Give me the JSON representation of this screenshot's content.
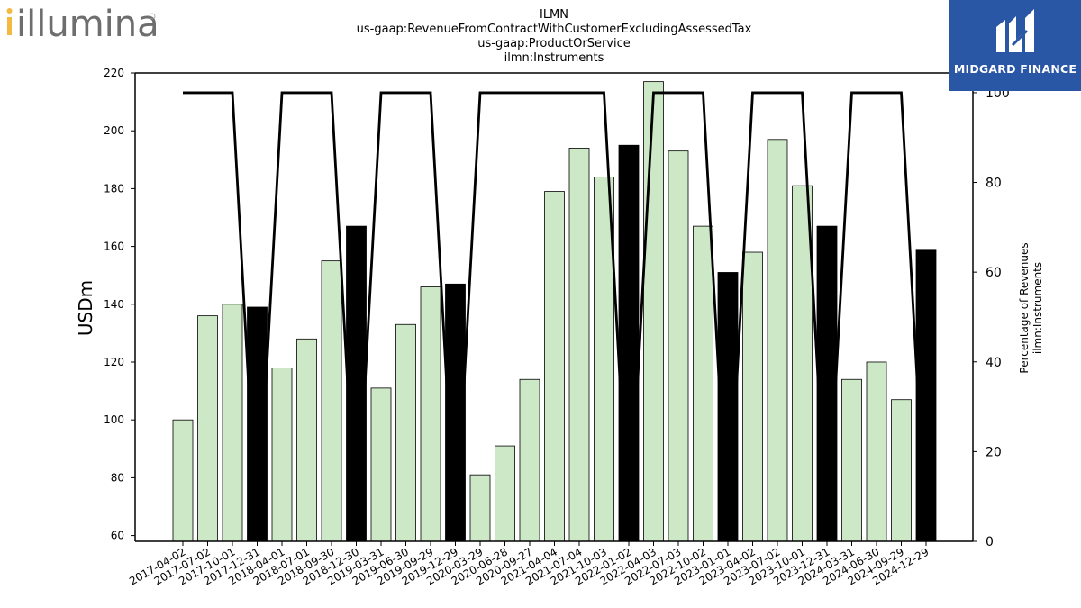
{
  "logos": {
    "left_text": "illumina",
    "right_text": "MIDGARD FINANCE"
  },
  "chart_data": {
    "type": "bar",
    "title_lines": [
      "ILMN",
      "us-gaap:RevenueFromContractWithCustomerExcludingAssessedTax",
      "us-gaap:ProductOrService",
      "ilmn:Instruments"
    ],
    "ylabel": "USDm",
    "y2label_lines": [
      "Percentage of Revenues",
      "ilmn:Instruments"
    ],
    "ylim": [
      58,
      220
    ],
    "y_ticks": [
      60,
      80,
      100,
      120,
      140,
      160,
      180,
      200,
      220
    ],
    "y2lim": [
      0,
      104.4
    ],
    "y2_ticks": [
      0,
      20,
      40,
      60,
      80,
      100
    ],
    "categories": [
      "2017-04-02",
      "2017-07-02",
      "2017-10-01",
      "2017-12-31",
      "2018-04-01",
      "2018-07-01",
      "2018-09-30",
      "2018-12-30",
      "2019-03-31",
      "2019-06-30",
      "2019-09-29",
      "2019-12-29",
      "2020-03-29",
      "2020-06-28",
      "2020-09-27",
      "2021-04-04",
      "2021-07-04",
      "2021-10-03",
      "2022-01-02",
      "2022-04-03",
      "2022-07-03",
      "2022-10-02",
      "2023-01-01",
      "2023-04-02",
      "2023-07-02",
      "2023-10-01",
      "2023-12-31",
      "2024-03-31",
      "2024-06-30",
      "2024-09-29",
      "2024-12-29"
    ],
    "values": [
      100,
      136,
      140,
      139,
      118,
      128,
      155,
      167,
      111,
      133,
      146,
      147,
      81,
      91,
      114,
      179,
      194,
      184,
      195,
      217,
      193,
      167,
      151,
      158,
      197,
      181,
      167,
      114,
      120,
      107,
      159
    ],
    "highlight": [
      false,
      false,
      false,
      true,
      false,
      false,
      false,
      true,
      false,
      false,
      false,
      true,
      false,
      false,
      false,
      false,
      false,
      false,
      true,
      false,
      false,
      false,
      true,
      false,
      false,
      false,
      true,
      false,
      false,
      false,
      true
    ],
    "percentage_series": [
      100,
      100,
      100,
      0,
      100,
      100,
      100,
      0,
      100,
      100,
      100,
      0,
      100,
      100,
      100,
      100,
      100,
      100,
      0,
      100,
      100,
      100,
      0,
      100,
      100,
      100,
      0,
      100,
      100,
      100,
      0
    ],
    "colors": {
      "bar": "#cce8c6",
      "highlight_bar": "#000000",
      "bar_edge": "#000000",
      "line": "#000000"
    }
  }
}
